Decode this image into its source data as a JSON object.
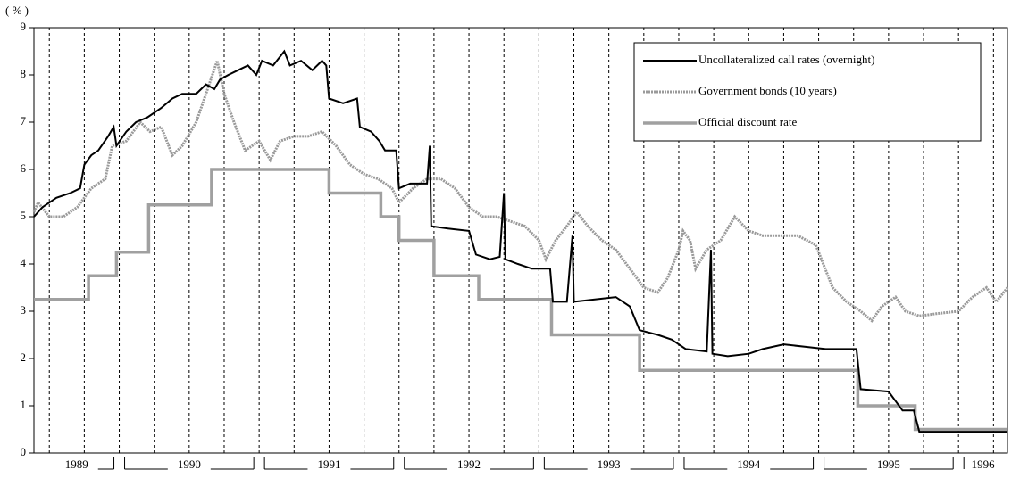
{
  "chart_data": {
    "type": "line",
    "y_unit": "( % )",
    "xlim": [
      1989.39,
      1996.35
    ],
    "ylim": [
      0,
      9
    ],
    "yticks": [
      0,
      1,
      2,
      3,
      4,
      5,
      6,
      7,
      8,
      9
    ],
    "xticks": [
      1990,
      1991,
      1992,
      1993,
      1994,
      1995,
      1996
    ],
    "categories": [
      "1989",
      "1990",
      "1991",
      "1992",
      "1993",
      "1994",
      "1995",
      "1996"
    ],
    "xgrid": [
      1989.5,
      1989.75,
      1990,
      1990.25,
      1990.5,
      1990.75,
      1991,
      1991.25,
      1991.5,
      1991.75,
      1992,
      1992.25,
      1992.5,
      1992.75,
      1993,
      1993.25,
      1993.5,
      1993.75,
      1994,
      1994.25,
      1994.5,
      1994.75,
      1995,
      1995.25,
      1995.5,
      1995.75,
      1996,
      1996.25
    ],
    "grid": true,
    "legend": "top-right",
    "series": [
      {
        "name": "Uncollateralized call rates (overnight)",
        "color": "#000000",
        "style": "solid",
        "x": [
          1989.39,
          1989.45,
          1989.55,
          1989.65,
          1989.72,
          1989.75,
          1989.8,
          1989.85,
          1989.92,
          1989.96,
          1989.98,
          1990.05,
          1990.12,
          1990.2,
          1990.3,
          1990.38,
          1990.45,
          1990.55,
          1990.62,
          1990.68,
          1990.72,
          1990.78,
          1990.85,
          1990.92,
          1990.98,
          1991.02,
          1991.1,
          1991.18,
          1991.22,
          1991.3,
          1991.38,
          1991.45,
          1991.48,
          1991.5,
          1991.6,
          1991.7,
          1991.72,
          1991.8,
          1991.86,
          1991.9,
          1991.98,
          1992.0,
          1992.08,
          1992.15,
          1992.2,
          1992.22,
          1992.23,
          1992.35,
          1992.5,
          1992.55,
          1992.65,
          1992.72,
          1992.75,
          1992.76,
          1992.85,
          1992.95,
          1993.08,
          1993.1,
          1993.2,
          1993.24,
          1993.25,
          1993.4,
          1993.55,
          1993.65,
          1993.72,
          1993.85,
          1993.95,
          1994.05,
          1994.2,
          1994.23,
          1994.24,
          1994.35,
          1994.5,
          1994.6,
          1994.75,
          1994.9,
          1995.05,
          1995.27,
          1995.3,
          1995.5,
          1995.6,
          1995.68,
          1995.72,
          1996.0,
          1996.35
        ],
        "values": [
          5.0,
          5.2,
          5.4,
          5.5,
          5.6,
          6.1,
          6.3,
          6.4,
          6.7,
          6.9,
          6.5,
          6.8,
          7.0,
          7.1,
          7.3,
          7.5,
          7.6,
          7.6,
          7.8,
          7.7,
          7.9,
          8.0,
          8.1,
          8.2,
          8.0,
          8.3,
          8.2,
          8.5,
          8.2,
          8.3,
          8.1,
          8.3,
          8.2,
          7.5,
          7.4,
          7.5,
          6.9,
          6.8,
          6.6,
          6.4,
          6.4,
          5.6,
          5.7,
          5.7,
          5.7,
          6.5,
          4.8,
          4.75,
          4.7,
          4.2,
          4.1,
          4.15,
          5.5,
          4.1,
          4.0,
          3.9,
          3.9,
          3.2,
          3.2,
          4.6,
          3.2,
          3.25,
          3.3,
          3.1,
          2.6,
          2.5,
          2.4,
          2.2,
          2.15,
          4.3,
          2.1,
          2.05,
          2.1,
          2.2,
          2.3,
          2.25,
          2.2,
          2.2,
          1.35,
          1.3,
          0.9,
          0.9,
          0.45,
          0.45,
          0.45
        ]
      },
      {
        "name": "Government bonds (10 years)",
        "color": "#9a9a9a",
        "style": "textured",
        "x": [
          1989.39,
          1989.42,
          1989.5,
          1989.6,
          1989.7,
          1989.8,
          1989.9,
          1989.95,
          1990.05,
          1990.15,
          1990.22,
          1990.3,
          1990.38,
          1990.45,
          1990.55,
          1990.62,
          1990.7,
          1990.75,
          1990.82,
          1990.9,
          1991.0,
          1991.08,
          1991.15,
          1991.25,
          1991.35,
          1991.45,
          1991.55,
          1991.65,
          1991.75,
          1991.85,
          1991.95,
          1992.0,
          1992.1,
          1992.2,
          1992.3,
          1992.4,
          1992.5,
          1992.6,
          1992.7,
          1992.8,
          1992.9,
          1993.0,
          1993.05,
          1993.12,
          1993.2,
          1993.27,
          1993.35,
          1993.45,
          1993.55,
          1993.65,
          1993.75,
          1993.85,
          1993.92,
          1994.0,
          1994.03,
          1994.08,
          1994.12,
          1994.2,
          1994.3,
          1994.4,
          1994.5,
          1994.6,
          1994.75,
          1994.85,
          1994.98,
          1995.1,
          1995.2,
          1995.3,
          1995.38,
          1995.45,
          1995.55,
          1995.62,
          1995.72,
          1995.85,
          1996.0,
          1996.1,
          1996.2,
          1996.27,
          1996.35
        ],
        "values": [
          5.1,
          5.3,
          5.0,
          5.0,
          5.2,
          5.6,
          5.8,
          6.5,
          6.6,
          7.0,
          6.8,
          6.9,
          6.3,
          6.5,
          7.0,
          7.6,
          8.3,
          7.6,
          7.0,
          6.4,
          6.6,
          6.2,
          6.6,
          6.7,
          6.7,
          6.8,
          6.5,
          6.1,
          5.9,
          5.8,
          5.6,
          5.3,
          5.6,
          5.8,
          5.8,
          5.6,
          5.2,
          5.0,
          5.0,
          4.9,
          4.8,
          4.5,
          4.1,
          4.5,
          4.8,
          5.1,
          4.8,
          4.5,
          4.3,
          3.9,
          3.5,
          3.4,
          3.7,
          4.3,
          4.7,
          4.5,
          3.9,
          4.3,
          4.5,
          5.0,
          4.7,
          4.6,
          4.6,
          4.6,
          4.4,
          3.5,
          3.2,
          3.0,
          2.8,
          3.1,
          3.3,
          3.0,
          2.9,
          2.95,
          3.0,
          3.3,
          3.5,
          3.2,
          3.5
        ]
      },
      {
        "name": "Official discount rate",
        "color": "#a0a0a0",
        "style": "thick",
        "x": [
          1989.39,
          1989.78,
          1989.78,
          1989.98,
          1989.98,
          1990.21,
          1990.21,
          1990.66,
          1990.66,
          1991.5,
          1991.5,
          1991.87,
          1991.87,
          1992.0,
          1992.0,
          1992.25,
          1992.25,
          1992.57,
          1992.57,
          1993.09,
          1993.09,
          1993.72,
          1993.72,
          1995.28,
          1995.28,
          1995.69,
          1995.69,
          1996.35
        ],
        "values": [
          3.25,
          3.25,
          3.75,
          3.75,
          4.25,
          4.25,
          5.25,
          5.25,
          6.0,
          6.0,
          5.5,
          5.5,
          5.0,
          5.0,
          4.5,
          4.5,
          3.75,
          3.75,
          3.25,
          3.25,
          2.5,
          2.5,
          1.75,
          1.75,
          1.0,
          1.0,
          0.5,
          0.5
        ]
      }
    ]
  }
}
